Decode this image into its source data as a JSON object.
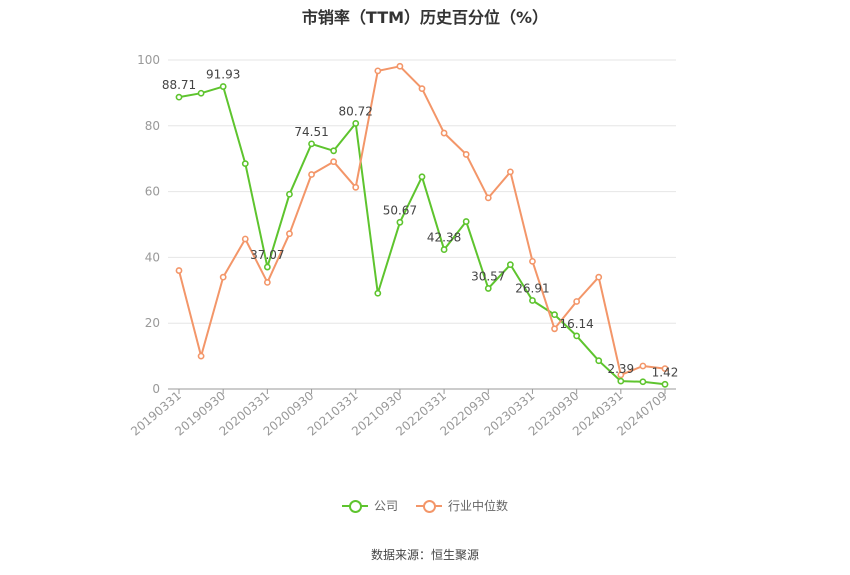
{
  "title": "市销率（TTM）历史百分位（%）",
  "source": "数据来源：恒生聚源",
  "chart_data": {
    "type": "line",
    "title": "市销率（TTM）历史百分位（%）",
    "xlabel": "",
    "ylabel": "",
    "ylim": [
      0,
      100
    ],
    "yticks": [
      0,
      20,
      40,
      60,
      80,
      100
    ],
    "grid": true,
    "legend_position": "bottom",
    "x_tick_labels": [
      "20190331",
      "20190930",
      "20200331",
      "20200930",
      "20210331",
      "20210930",
      "20220331",
      "20220930",
      "20230331",
      "20230930",
      "20240331",
      "20240709"
    ],
    "x": [
      "20190331",
      "20190630",
      "20190930",
      "20191231",
      "20200331",
      "20200630",
      "20200930",
      "20201231",
      "20210331",
      "20210630",
      "20210930",
      "20211231",
      "20220331",
      "20220630",
      "20220930",
      "20221231",
      "20230331",
      "20230630",
      "20230930",
      "20231231",
      "20240331",
      "20240630",
      "20240709"
    ],
    "series": [
      {
        "name": "公司",
        "color": "#5ec42e",
        "values": [
          88.71,
          89.9,
          91.93,
          68.5,
          37.07,
          59.2,
          74.51,
          72.4,
          80.72,
          29.1,
          50.67,
          64.5,
          42.38,
          50.9,
          30.57,
          37.8,
          26.91,
          22.6,
          16.14,
          8.6,
          2.39,
          2.2,
          1.42
        ],
        "labels": [
          "88.71",
          "",
          "91.93",
          "",
          "37.07",
          "",
          "74.51",
          "",
          "80.72",
          "",
          "50.67",
          "",
          "42.38",
          "",
          "30.57",
          "",
          "26.91",
          "",
          "16.14",
          "",
          "2.39",
          "",
          "1.42"
        ]
      },
      {
        "name": "行业中位数",
        "color": "#f39669",
        "values": [
          36.0,
          10.0,
          34.0,
          45.6,
          32.4,
          47.2,
          65.2,
          69.1,
          61.3,
          96.7,
          98.1,
          91.3,
          77.8,
          71.3,
          58.1,
          66.0,
          38.8,
          18.3,
          26.6,
          34.0,
          4.3,
          7.0,
          6.2
        ]
      }
    ]
  }
}
